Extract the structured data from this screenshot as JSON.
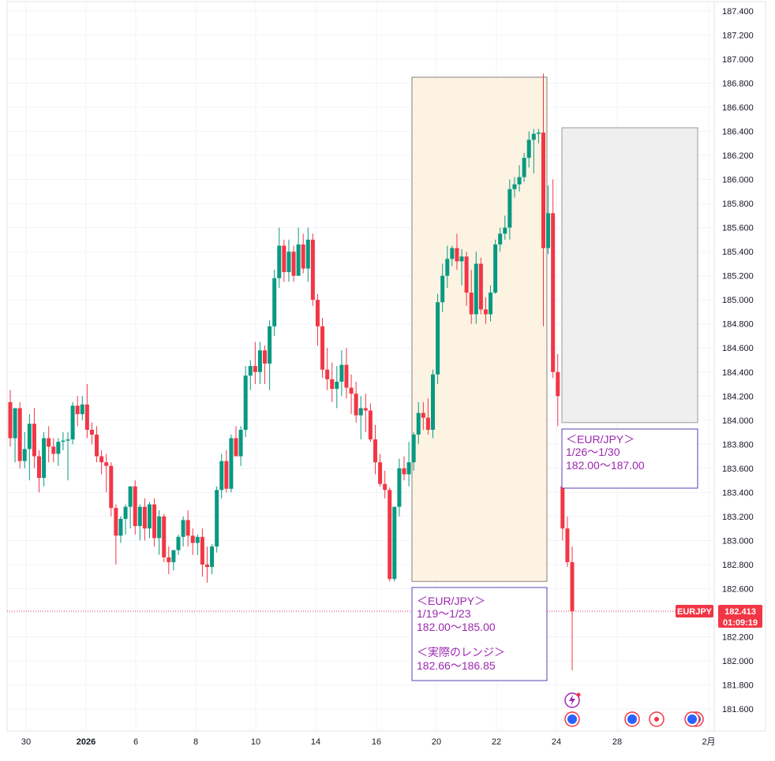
{
  "chart_data": {
    "type": "candlestick",
    "symbol": "EURJPY",
    "y_ticks": [
      "187.400",
      "187.200",
      "187.000",
      "186.800",
      "186.600",
      "186.400",
      "186.200",
      "186.000",
      "185.800",
      "185.600",
      "185.400",
      "185.200",
      "185.000",
      "184.800",
      "184.600",
      "184.400",
      "184.200",
      "184.000",
      "183.800",
      "183.600",
      "183.400",
      "183.200",
      "183.000",
      "182.800",
      "182.600",
      "182.400",
      "182.200",
      "182.000",
      "181.800",
      "181.600"
    ],
    "x_ticks": [
      "30",
      "2026",
      "6",
      "8",
      "10",
      "14",
      "16",
      "20",
      "22",
      "24",
      "28",
      "2月"
    ],
    "ylim": [
      181.4,
      187.5
    ],
    "grid": true,
    "last_price": {
      "label": "EURJPY",
      "price": "182.413",
      "countdown": "01:09:19",
      "value": 182.413
    },
    "candles": [
      [
        184.15,
        184.25,
        183.78,
        183.85
      ],
      [
        183.85,
        184.1,
        183.65,
        184.1
      ],
      [
        184.1,
        184.15,
        183.6,
        183.66
      ],
      [
        183.66,
        183.9,
        183.6,
        183.76
      ],
      [
        183.76,
        184.05,
        183.5,
        183.97
      ],
      [
        183.97,
        184.1,
        183.6,
        183.7
      ],
      [
        183.7,
        183.75,
        183.4,
        183.52
      ],
      [
        183.52,
        183.9,
        183.45,
        183.85
      ],
      [
        183.85,
        183.95,
        183.65,
        183.78
      ],
      [
        183.78,
        183.85,
        183.65,
        183.72
      ],
      [
        183.72,
        183.85,
        183.62,
        183.82
      ],
      [
        183.82,
        183.9,
        183.75,
        183.83
      ],
      [
        183.83,
        183.9,
        183.5,
        183.84
      ],
      [
        183.84,
        184.15,
        183.8,
        184.12
      ],
      [
        184.12,
        184.2,
        183.95,
        184.05
      ],
      [
        184.05,
        184.2,
        184,
        184.13
      ],
      [
        184.13,
        184.3,
        183.85,
        183.92
      ],
      [
        183.92,
        183.98,
        183.8,
        183.88
      ],
      [
        183.88,
        183.95,
        183.65,
        183.7
      ],
      [
        183.7,
        183.75,
        183.55,
        183.65
      ],
      [
        183.65,
        183.72,
        183.4,
        183.62
      ],
      [
        183.62,
        183.65,
        183.2,
        183.27
      ],
      [
        183.27,
        183.3,
        182.8,
        183.04
      ],
      [
        183.04,
        183.2,
        182.98,
        183.18
      ],
      [
        183.18,
        183.3,
        183.05,
        183.28
      ],
      [
        183.28,
        183.45,
        183.1,
        183.45
      ],
      [
        183.45,
        183.5,
        183.05,
        183.12
      ],
      [
        183.12,
        183.3,
        183,
        183.28
      ],
      [
        183.28,
        183.35,
        183,
        183.1
      ],
      [
        183.1,
        183.32,
        183.02,
        183.3
      ],
      [
        183.3,
        183.35,
        182.95,
        183.02
      ],
      [
        183.02,
        183.25,
        182.88,
        183.2
      ],
      [
        183.2,
        183.22,
        182.82,
        182.86
      ],
      [
        182.86,
        182.95,
        182.72,
        182.82
      ],
      [
        182.82,
        182.9,
        182.75,
        182.92
      ],
      [
        182.92,
        183.05,
        182.88,
        183.03
      ],
      [
        183.03,
        183.2,
        182.95,
        183.17
      ],
      [
        183.17,
        183.25,
        182.95,
        183.04
      ],
      [
        183.04,
        183.1,
        182.88,
        182.98
      ],
      [
        182.98,
        183.05,
        182.88,
        183.03
      ],
      [
        183.03,
        183.1,
        182.7,
        182.8
      ],
      [
        182.8,
        182.95,
        182.65,
        182.78
      ],
      [
        182.78,
        182.97,
        182.72,
        182.95
      ],
      [
        182.95,
        183.45,
        182.9,
        183.42
      ],
      [
        183.42,
        183.72,
        183.35,
        183.66
      ],
      [
        183.66,
        183.75,
        183.4,
        183.43
      ],
      [
        183.43,
        183.88,
        183.4,
        183.85
      ],
      [
        183.85,
        183.95,
        183.7,
        183.7
      ],
      [
        183.7,
        183.95,
        183.62,
        183.92
      ],
      [
        183.92,
        184.45,
        183.86,
        184.37
      ],
      [
        184.37,
        184.5,
        184.25,
        184.45
      ],
      [
        184.45,
        184.65,
        184.3,
        184.4
      ],
      [
        184.4,
        184.65,
        184.3,
        184.58
      ],
      [
        184.58,
        184.62,
        184.3,
        184.47
      ],
      [
        184.47,
        184.83,
        184.25,
        184.78
      ],
      [
        184.78,
        185.25,
        184.7,
        185.18
      ],
      [
        185.18,
        185.6,
        185.1,
        185.45
      ],
      [
        185.45,
        185.5,
        185.15,
        185.23
      ],
      [
        185.23,
        185.5,
        185.15,
        185.4
      ],
      [
        185.4,
        185.45,
        185.15,
        185.2
      ],
      [
        185.2,
        185.6,
        185.2,
        185.46
      ],
      [
        185.46,
        185.55,
        185.22,
        185.26
      ],
      [
        185.26,
        185.6,
        185.15,
        185.5
      ],
      [
        185.5,
        185.55,
        184.95,
        185
      ],
      [
        185.0,
        185.05,
        184.62,
        184.78
      ],
      [
        184.78,
        184.85,
        184.35,
        184.42
      ],
      [
        184.42,
        184.6,
        184.25,
        184.34
      ],
      [
        184.34,
        184.48,
        184.15,
        184.26
      ],
      [
        184.26,
        184.45,
        184.1,
        184.32
      ],
      [
        184.32,
        184.58,
        184.2,
        184.46
      ],
      [
        184.46,
        184.6,
        184.18,
        184.27
      ],
      [
        184.27,
        184.38,
        184.05,
        184.22
      ],
      [
        184.22,
        184.32,
        183.98,
        184.04
      ],
      [
        184.04,
        184.2,
        183.84,
        184.1
      ],
      [
        184.1,
        184.22,
        183.9,
        184.08
      ],
      [
        184.08,
        184.14,
        183.82,
        183.84
      ],
      [
        183.84,
        183.96,
        183.55,
        183.65
      ],
      [
        183.65,
        183.72,
        183.45,
        183.47
      ],
      [
        183.47,
        183.58,
        183.35,
        183.42
      ],
      [
        183.42,
        183.44,
        182.66,
        182.68
      ],
      [
        182.68,
        183.28,
        182.66,
        183.28
      ],
      [
        183.28,
        183.68,
        183.2,
        183.6
      ],
      [
        183.6,
        183.7,
        183.5,
        183.55
      ],
      [
        183.55,
        183.82,
        183.45,
        183.65
      ],
      [
        183.65,
        183.9,
        183.58,
        183.88
      ],
      [
        183.88,
        184.15,
        183.8,
        184.06
      ],
      [
        184.06,
        184.15,
        183.92,
        184.02
      ],
      [
        184.02,
        184.18,
        183.88,
        183.92
      ],
      [
        183.92,
        184.42,
        183.85,
        184.38
      ],
      [
        184.38,
        185.05,
        184.3,
        184.98
      ],
      [
        184.98,
        185.3,
        184.9,
        185.2
      ],
      [
        185.2,
        185.45,
        185.1,
        185.34
      ],
      [
        185.34,
        185.45,
        185.28,
        185.43
      ],
      [
        185.43,
        185.55,
        185.25,
        185.32
      ],
      [
        185.32,
        185.42,
        185.12,
        185.36
      ],
      [
        185.36,
        185.4,
        184.95,
        185.06
      ],
      [
        185.06,
        185.25,
        184.8,
        184.88
      ],
      [
        184.88,
        185.4,
        184.8,
        185.3
      ],
      [
        185.3,
        185.35,
        184.88,
        184.92
      ],
      [
        184.92,
        185.02,
        184.8,
        184.88
      ],
      [
        184.88,
        185.12,
        184.82,
        185.06
      ],
      [
        185.06,
        185.5,
        185.05,
        185.46
      ],
      [
        185.46,
        185.6,
        185.4,
        185.55
      ],
      [
        185.55,
        185.7,
        185.5,
        185.6
      ],
      [
        185.6,
        186.0,
        185.5,
        185.92
      ],
      [
        185.92,
        186.02,
        185.85,
        185.96
      ],
      [
        185.96,
        186.12,
        185.9,
        186.02
      ],
      [
        186.02,
        186.22,
        185.98,
        186.18
      ],
      [
        186.18,
        186.4,
        186.1,
        186.33
      ],
      [
        186.33,
        186.42,
        186.05,
        186.38
      ],
      [
        186.38,
        186.42,
        186.3,
        186.39
      ],
      [
        186.39,
        186.88,
        184.78,
        185.43
      ],
      [
        185.43,
        185.95,
        185.38,
        185.72
      ],
      [
        185.72,
        186.0,
        184.35,
        184.4
      ],
      [
        184.4,
        184.55,
        183.95,
        184.2
      ],
      [
        183.45,
        183.48,
        183.0,
        183.1
      ],
      [
        183.1,
        183.2,
        182.78,
        182.82
      ],
      [
        182.82,
        182.95,
        181.92,
        182.413
      ]
    ],
    "annotations": [
      {
        "title": "＜EUR/JPY＞",
        "dates": "1/19〜1/23",
        "range": "182.00〜185.00",
        "title2": "＜実際のレンジ＞",
        "range2": "182.66〜186.85"
      },
      {
        "title": "＜EUR/JPY＞",
        "dates": "1/26〜1/30",
        "range": "182.00〜187.00"
      }
    ],
    "highlight_box": {
      "from_price": 182.66,
      "to_price": 186.85
    },
    "forecast_box": {
      "from_price": 183.98,
      "to_price": 186.43
    },
    "colors": {
      "up": "#089981",
      "down": "#f23645",
      "highlight_fill": "#fdf3e3",
      "forecast_fill": "#efefef",
      "annotation": "#9c27b0",
      "box_border": "#5b3fb5",
      "price_tag": "#f23645",
      "grid": "#f0f3fa"
    },
    "event_icons": [
      "calendar-icon",
      "calendar-icon",
      "record-icon",
      "calendar-icon",
      "lightning-icon"
    ]
  }
}
